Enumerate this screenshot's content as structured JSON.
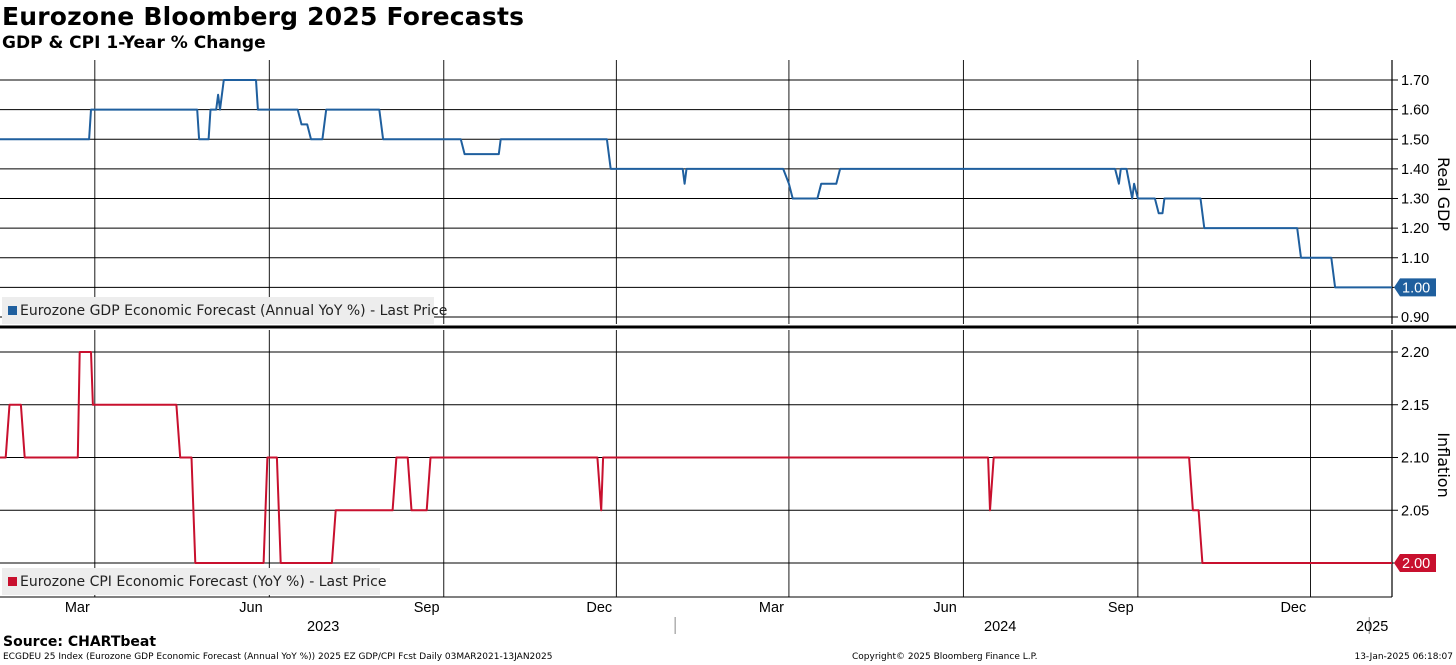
{
  "header": {
    "title": "Eurozone Bloomberg 2025 Forecasts",
    "subtitle": "GDP & CPI 1-Year % Change"
  },
  "footer": {
    "source": "Source: CHARTbeat",
    "left": "ECGDEU 25 Index (Eurozone GDP Economic Forecast (Annual YoY %)) 2025 EZ GDP/CPI Fcst  Daily 03MAR2021-13JAN2025",
    "mid": "Copyright© 2025 Bloomberg Finance L.P.",
    "right": "13-Jan-2025 06:18:07"
  },
  "x_axis": {
    "month_labels": [
      "Mar",
      "Jun",
      "Sep",
      "Dec",
      "Mar",
      "Jun",
      "Sep",
      "Dec"
    ],
    "year_labels": [
      "2023",
      "2024",
      "2025"
    ]
  },
  "chart_data": [
    {
      "type": "line",
      "title": "",
      "ylabel": "Real GDP",
      "ylim": [
        0.88,
        1.74
      ],
      "yticks": [
        "1.70",
        "1.60",
        "1.50",
        "1.40",
        "1.30",
        "1.20",
        "1.10",
        "1.00",
        "0.90"
      ],
      "x_range": [
        "2023-01-10",
        "2025-01-13"
      ],
      "grid": true,
      "legend_position": "bottom-left",
      "color": "#1f5f9e",
      "last_value": "1.00",
      "series": [
        {
          "name": "Eurozone GDP Economic Forecast (Annual YoY %) - Last Price",
          "points": [
            [
              "2023-01-10",
              1.5
            ],
            [
              "2023-02-26",
              1.5
            ],
            [
              "2023-02-27",
              1.6
            ],
            [
              "2023-04-24",
              1.6
            ],
            [
              "2023-04-25",
              1.5
            ],
            [
              "2023-04-30",
              1.5
            ],
            [
              "2023-05-01",
              1.6
            ],
            [
              "2023-05-04",
              1.6
            ],
            [
              "2023-05-05",
              1.65
            ],
            [
              "2023-05-06",
              1.6
            ],
            [
              "2023-05-08",
              1.7
            ],
            [
              "2023-05-25",
              1.7
            ],
            [
              "2023-05-26",
              1.6
            ],
            [
              "2023-06-16",
              1.6
            ],
            [
              "2023-06-18",
              1.55
            ],
            [
              "2023-06-21",
              1.55
            ],
            [
              "2023-06-23",
              1.5
            ],
            [
              "2023-06-29",
              1.5
            ],
            [
              "2023-07-01",
              1.6
            ],
            [
              "2023-07-29",
              1.6
            ],
            [
              "2023-07-31",
              1.5
            ],
            [
              "2023-09-10",
              1.5
            ],
            [
              "2023-09-12",
              1.45
            ],
            [
              "2023-09-30",
              1.45
            ],
            [
              "2023-10-01",
              1.5
            ],
            [
              "2023-11-26",
              1.5
            ],
            [
              "2023-11-28",
              1.4
            ],
            [
              "2024-01-05",
              1.4
            ],
            [
              "2024-01-06",
              1.35
            ],
            [
              "2024-01-07",
              1.4
            ],
            [
              "2024-02-27",
              1.4
            ],
            [
              "2024-03-01",
              1.35
            ],
            [
              "2024-03-03",
              1.3
            ],
            [
              "2024-03-16",
              1.3
            ],
            [
              "2024-03-18",
              1.35
            ],
            [
              "2024-03-26",
              1.35
            ],
            [
              "2024-03-28",
              1.4
            ],
            [
              "2024-08-20",
              1.4
            ],
            [
              "2024-08-22",
              1.35
            ],
            [
              "2024-08-23",
              1.4
            ],
            [
              "2024-08-26",
              1.4
            ],
            [
              "2024-08-29",
              1.3
            ],
            [
              "2024-08-30",
              1.35
            ],
            [
              "2024-09-01",
              1.3
            ],
            [
              "2024-09-10",
              1.3
            ],
            [
              "2024-09-12",
              1.25
            ],
            [
              "2024-09-14",
              1.25
            ],
            [
              "2024-09-15",
              1.3
            ],
            [
              "2024-10-04",
              1.3
            ],
            [
              "2024-10-06",
              1.2
            ],
            [
              "2024-11-24",
              1.2
            ],
            [
              "2024-11-26",
              1.1
            ],
            [
              "2024-12-12",
              1.1
            ],
            [
              "2024-12-14",
              1.0
            ],
            [
              "2025-01-13",
              1.0
            ]
          ]
        }
      ]
    },
    {
      "type": "line",
      "title": "",
      "ylabel": "Inflation",
      "ylim": [
        1.97,
        2.23
      ],
      "yticks": [
        "2.20",
        "2.15",
        "2.10",
        "2.05",
        "2.00"
      ],
      "x_range": [
        "2023-01-10",
        "2025-01-13"
      ],
      "grid": true,
      "legend_position": "bottom-left",
      "color": "#c8102e",
      "last_value": "2.00",
      "series": [
        {
          "name": "Eurozone CPI Economic Forecast (YoY %) - Last Price",
          "points": [
            [
              "2023-01-10",
              2.1
            ],
            [
              "2023-01-13",
              2.1
            ],
            [
              "2023-01-15",
              2.15
            ],
            [
              "2023-01-21",
              2.15
            ],
            [
              "2023-01-23",
              2.1
            ],
            [
              "2023-02-20",
              2.1
            ],
            [
              "2023-02-21",
              2.2
            ],
            [
              "2023-02-27",
              2.2
            ],
            [
              "2023-02-28",
              2.15
            ],
            [
              "2023-04-13",
              2.15
            ],
            [
              "2023-04-15",
              2.1
            ],
            [
              "2023-04-21",
              2.1
            ],
            [
              "2023-04-23",
              2.0
            ],
            [
              "2023-05-29",
              2.0
            ],
            [
              "2023-05-31",
              2.1
            ],
            [
              "2023-06-05",
              2.1
            ],
            [
              "2023-06-07",
              2.0
            ],
            [
              "2023-07-04",
              2.0
            ],
            [
              "2023-07-06",
              2.05
            ],
            [
              "2023-08-05",
              2.05
            ],
            [
              "2023-08-07",
              2.1
            ],
            [
              "2023-08-13",
              2.1
            ],
            [
              "2023-08-15",
              2.05
            ],
            [
              "2023-08-23",
              2.05
            ],
            [
              "2023-08-25",
              2.1
            ],
            [
              "2023-11-21",
              2.1
            ],
            [
              "2023-11-23",
              2.05
            ],
            [
              "2023-11-24",
              2.1
            ],
            [
              "2024-06-14",
              2.1
            ],
            [
              "2024-06-15",
              2.05
            ],
            [
              "2024-06-17",
              2.1
            ],
            [
              "2024-09-28",
              2.1
            ],
            [
              "2024-09-30",
              2.05
            ],
            [
              "2024-10-03",
              2.05
            ],
            [
              "2024-10-05",
              2.0
            ],
            [
              "2025-01-13",
              2.0
            ]
          ]
        }
      ]
    }
  ]
}
